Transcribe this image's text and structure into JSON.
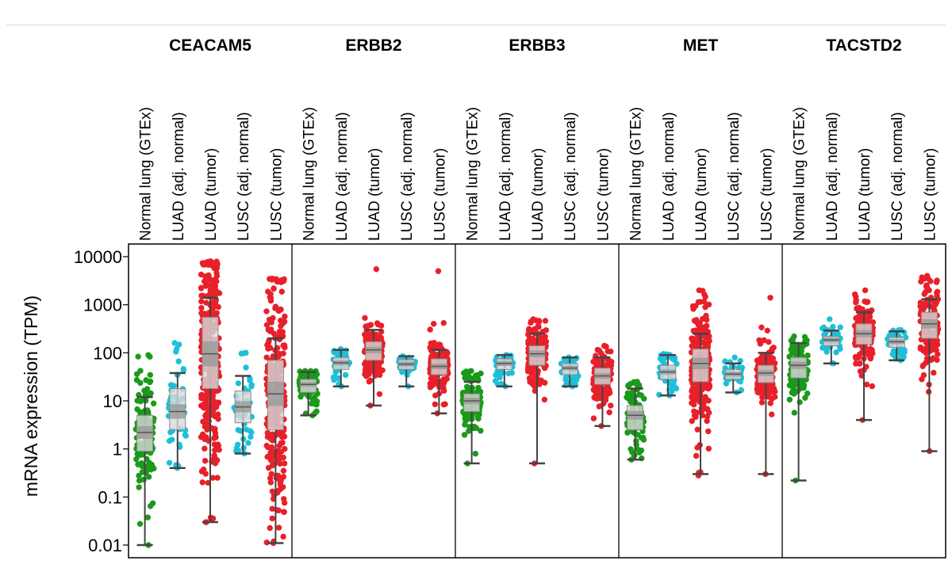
{
  "chart_data": {
    "type": "box",
    "ylabel": "mRNA expression (TPM)",
    "yscale": "log",
    "ylim": [
      0.01,
      10000
    ],
    "yticks": [
      {
        "value": 0.01,
        "label": "0.01"
      },
      {
        "value": 0.1,
        "label": "0.1"
      },
      {
        "value": 1,
        "label": "1"
      },
      {
        "value": 10,
        "label": "10"
      },
      {
        "value": 100,
        "label": "100"
      },
      {
        "value": 1000,
        "label": "1000"
      },
      {
        "value": 10000,
        "label": "10000"
      }
    ],
    "categories": [
      "Normal lung (GTEx)",
      "LUAD (adj. normal)",
      "LUAD (tumor)",
      "LUSC (adj. normal)",
      "LUSC (tumor)"
    ],
    "category_colors": [
      "#1a9a1a",
      "#1ec0d8",
      "#e8202a",
      "#1ec0d8",
      "#e8202a"
    ],
    "panels": [
      {
        "gene": "CEACAM5",
        "groups": [
          {
            "whisker_low": 0.01,
            "q1": 0.9,
            "median": 2.2,
            "q3": 5,
            "whisker_high": 12,
            "pt_min": 0.01,
            "pt_max": 90,
            "n": 120
          },
          {
            "whisker_low": 0.4,
            "q1": 2.5,
            "median": 6,
            "q3": 18,
            "whisker_high": 38,
            "pt_min": 0.4,
            "pt_max": 160,
            "n": 45
          },
          {
            "whisker_low": 0.03,
            "q1": 18,
            "median": 95,
            "q3": 550,
            "whisker_high": 1400,
            "pt_min": 0.03,
            "pt_max": 8000,
            "n": 300
          },
          {
            "whisker_low": 0.8,
            "q1": 3.5,
            "median": 7.5,
            "q3": 16,
            "whisker_high": 33,
            "pt_min": 0.8,
            "pt_max": 100,
            "n": 40
          },
          {
            "whisker_low": 0.011,
            "q1": 2.5,
            "median": 14,
            "q3": 70,
            "whisker_high": 200,
            "pt_min": 0.011,
            "pt_max": 3500,
            "n": 260
          }
        ]
      },
      {
        "gene": "ERBB2",
        "groups": [
          {
            "whisker_low": 5,
            "q1": 15,
            "median": 22,
            "q3": 28,
            "whisker_high": 40,
            "pt_min": 5,
            "pt_max": 42,
            "n": 70
          },
          {
            "whisker_low": 20,
            "q1": 45,
            "median": 62,
            "q3": 80,
            "whisker_high": 115,
            "pt_min": 20,
            "pt_max": 120,
            "n": 40
          },
          {
            "whisker_low": 8,
            "q1": 70,
            "median": 115,
            "q3": 170,
            "whisker_high": 300,
            "pt_min": 8,
            "pt_max": 5500,
            "n": 140
          },
          {
            "whisker_low": 20,
            "q1": 45,
            "median": 58,
            "q3": 72,
            "whisker_high": 85,
            "pt_min": 20,
            "pt_max": 85,
            "n": 35
          },
          {
            "whisker_low": 5.5,
            "q1": 35,
            "median": 52,
            "q3": 75,
            "whisker_high": 115,
            "pt_min": 5.5,
            "pt_max": 5000,
            "n": 140
          }
        ]
      },
      {
        "gene": "ERBB3",
        "groups": [
          {
            "whisker_low": 0.5,
            "q1": 6,
            "median": 10,
            "q3": 14,
            "whisker_high": 25,
            "pt_min": 0.5,
            "pt_max": 42,
            "n": 110
          },
          {
            "whisker_low": 20,
            "q1": 45,
            "median": 60,
            "q3": 75,
            "whisker_high": 90,
            "pt_min": 20,
            "pt_max": 90,
            "n": 40
          },
          {
            "whisker_low": 0.5,
            "q1": 55,
            "median": 95,
            "q3": 140,
            "whisker_high": 250,
            "pt_min": 0.5,
            "pt_max": 500,
            "n": 140
          },
          {
            "whisker_low": 20,
            "q1": 35,
            "median": 48,
            "q3": 60,
            "whisker_high": 80,
            "pt_min": 20,
            "pt_max": 80,
            "n": 35
          },
          {
            "whisker_low": 3,
            "q1": 22,
            "median": 33,
            "q3": 48,
            "whisker_high": 80,
            "pt_min": 3,
            "pt_max": 140,
            "n": 130
          }
        ]
      },
      {
        "gene": "MET",
        "groups": [
          {
            "whisker_low": 0.6,
            "q1": 2.5,
            "median": 5,
            "q3": 8,
            "whisker_high": 18,
            "pt_min": 0.6,
            "pt_max": 25,
            "n": 100
          },
          {
            "whisker_low": 13,
            "q1": 28,
            "median": 40,
            "q3": 55,
            "whisker_high": 90,
            "pt_min": 13,
            "pt_max": 95,
            "n": 40
          },
          {
            "whisker_low": 0.3,
            "q1": 25,
            "median": 60,
            "q3": 120,
            "whisker_high": 250,
            "pt_min": 0.28,
            "pt_max": 2000,
            "n": 260
          },
          {
            "whisker_low": 15,
            "q1": 28,
            "median": 36,
            "q3": 45,
            "whisker_high": 60,
            "pt_min": 15,
            "pt_max": 80,
            "n": 35
          },
          {
            "whisker_low": 0.3,
            "q1": 24,
            "median": 38,
            "q3": 55,
            "whisker_high": 100,
            "pt_min": 0.3,
            "pt_max": 1400,
            "n": 130
          }
        ]
      },
      {
        "gene": "TACSTD2",
        "groups": [
          {
            "whisker_low": 0.22,
            "q1": 30,
            "median": 55,
            "q3": 80,
            "whisker_high": 160,
            "pt_min": 0.22,
            "pt_max": 220,
            "n": 110
          },
          {
            "whisker_low": 60,
            "q1": 140,
            "median": 185,
            "q3": 220,
            "whisker_high": 290,
            "pt_min": 60,
            "pt_max": 500,
            "n": 40
          },
          {
            "whisker_low": 4,
            "q1": 150,
            "median": 250,
            "q3": 400,
            "whisker_high": 700,
            "pt_min": 4,
            "pt_max": 2000,
            "n": 150
          },
          {
            "whisker_low": 70,
            "q1": 130,
            "median": 170,
            "q3": 210,
            "whisker_high": 280,
            "pt_min": 70,
            "pt_max": 300,
            "n": 40
          },
          {
            "whisker_low": 0.9,
            "q1": 200,
            "median": 400,
            "q3": 700,
            "whisker_high": 1300,
            "pt_min": 0.9,
            "pt_max": 4000,
            "n": 160
          }
        ]
      }
    ]
  }
}
